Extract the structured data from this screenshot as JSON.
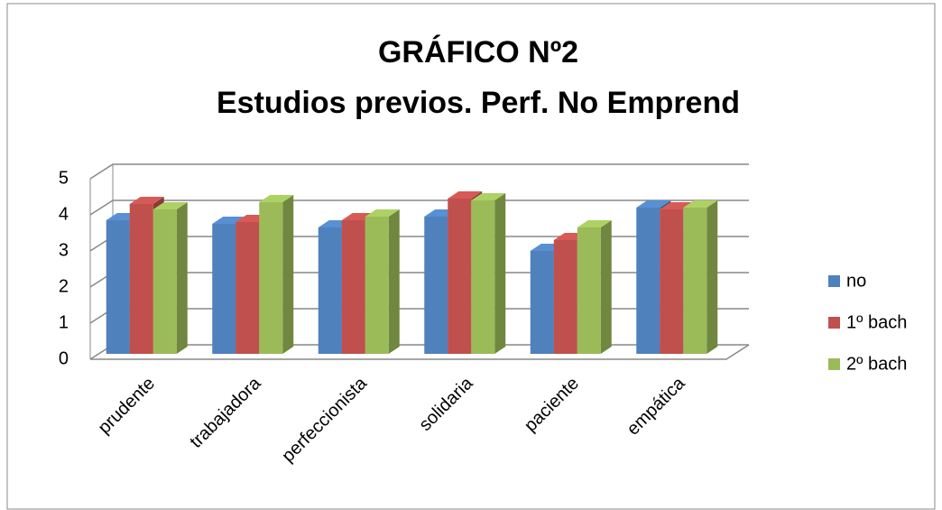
{
  "chart_data": {
    "type": "bar3d",
    "title": "GRÁFICO Nº2",
    "subtitle": "Estudios previos. Perf. No Emprend",
    "categories": [
      "prudente",
      "trabajadora",
      "perfeccionista",
      "solidaria",
      "paciente",
      "empática"
    ],
    "series": [
      {
        "name": "no",
        "color": "#4f81bd",
        "values": [
          3.7,
          3.6,
          3.5,
          3.8,
          2.85,
          4.05
        ]
      },
      {
        "name": "1º bach",
        "color": "#c0504d",
        "values": [
          4.15,
          3.65,
          3.7,
          4.3,
          3.15,
          4.0
        ]
      },
      {
        "name": "2º bach",
        "color": "#9bbb59",
        "values": [
          4.0,
          4.2,
          3.8,
          4.25,
          3.5,
          4.05
        ]
      }
    ],
    "ylim": [
      0,
      5
    ],
    "yticks": [
      0,
      1,
      2,
      3,
      4,
      5
    ],
    "grid": true,
    "legend": "right"
  }
}
